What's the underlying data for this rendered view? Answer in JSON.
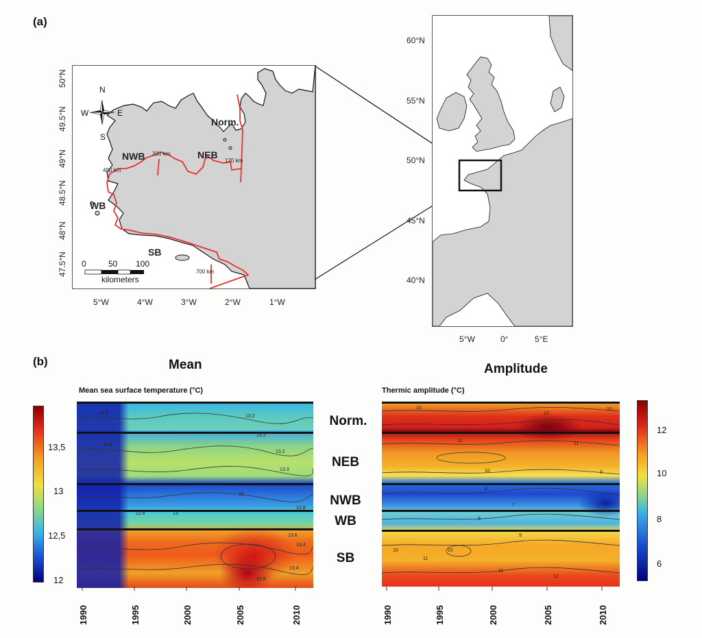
{
  "panel_a": {
    "label": "(a)",
    "inset": {
      "lat_labels": [
        "50°N",
        "49.5°N",
        "49°N",
        "48.5°N",
        "48°N",
        "47.5°N"
      ],
      "lon_labels": [
        "5°W",
        "4°W",
        "3°W",
        "2°W",
        "1°W"
      ],
      "compass": {
        "n": "N",
        "s": "S",
        "e": "E",
        "w": "W"
      },
      "regions": [
        "Norm.",
        "NEB",
        "NWB",
        "WB",
        "SB"
      ],
      "distance_marks": [
        "300 km",
        "400 km",
        "120 km",
        "700 km"
      ],
      "scale": {
        "ticks": [
          "0",
          "50",
          "100"
        ],
        "unit": "kilometers"
      }
    },
    "overview": {
      "lat_labels": [
        "60°N",
        "55°N",
        "50°N",
        "45°N",
        "40°N"
      ],
      "lon_labels": [
        "5°W",
        "0°",
        "5°E"
      ]
    }
  },
  "panel_b": {
    "label": "(b)",
    "mean": {
      "heading": "Mean",
      "title": "Mean sea surface temperature (°C)",
      "colorbar_ticks": [
        "13,5",
        "13",
        "12,5",
        "12"
      ],
      "contour_labels": [
        "12.4",
        "12.4",
        "13.2",
        "13.2",
        "13.2",
        "13.3",
        "13",
        "13",
        "12.8",
        "12.8",
        "13.6",
        "13.4",
        "13.4",
        "12.8"
      ]
    },
    "amplitude": {
      "heading": "Amplitude",
      "title": "Thermic amplitude (°C)",
      "colorbar_ticks": [
        "12",
        "10",
        "8",
        "6"
      ],
      "contour_labels": [
        "10",
        "10",
        "12",
        "12",
        "11",
        "10",
        "9",
        "8",
        "7",
        "8",
        "9",
        "10",
        "11",
        "10",
        "11",
        "12"
      ]
    },
    "row_labels": [
      "Norm.",
      "NEB",
      "NWB",
      "WB",
      "SB"
    ],
    "years": [
      "1990",
      "1995",
      "2000",
      "2005",
      "2010"
    ]
  }
}
